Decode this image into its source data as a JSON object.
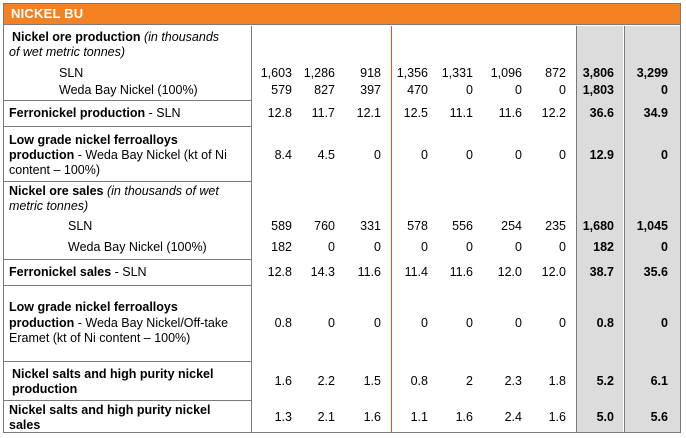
{
  "title": "NICKEL BU",
  "accent_color": "#f58220",
  "shade_color": "#dcdcdc",
  "divider_color": "#e0561a",
  "rows": [
    {
      "label_bold": "Nickel ore production",
      "label_italic": " (in thousands",
      "label_line2_italic": "of wet metric tonnes)"
    },
    {
      "label": "SLN",
      "values": [
        "1,603",
        "1,286",
        "918",
        "1,356",
        "1,331",
        "1,096",
        "872",
        "3,806",
        "3,299"
      ]
    },
    {
      "label": "Weda Bay Nickel (100%)",
      "values": [
        "579",
        "827",
        "397",
        "470",
        "0",
        "0",
        "0",
        "1,803",
        "0"
      ]
    },
    {
      "label_bold": "Ferronickel production",
      "label_normal": " - SLN",
      "values": [
        "12.8",
        "11.7",
        "12.1",
        "12.5",
        "11.1",
        "11.6",
        "12.2",
        "36.6",
        "34.9"
      ]
    },
    {
      "line1": "Low grade nickel ferroalloys",
      "line2_bold": "production",
      "line2_normal": " - Weda Bay Nickel (kt of Ni",
      "line3": "content – 100%)",
      "values": [
        "8.4",
        "4.5",
        "0",
        "0",
        "0",
        "0",
        "0",
        "12.9",
        "0"
      ]
    },
    {
      "label_bold": "Nickel ore sales",
      "label_italic": " (in thousands of wet",
      "label_line2_italic": "metric tonnes)"
    },
    {
      "label": "SLN",
      "values": [
        "589",
        "760",
        "331",
        "578",
        "556",
        "254",
        "235",
        "1,680",
        "1,045"
      ]
    },
    {
      "label": "Weda Bay Nickel (100%)",
      "values": [
        "182",
        "0",
        "0",
        "0",
        "0",
        "0",
        "0",
        "182",
        "0"
      ]
    },
    {
      "label_bold": "Ferronickel sales",
      "label_normal": " - SLN",
      "values": [
        "12.8",
        "14.3",
        "11.6",
        "11.4",
        "11.6",
        "12.0",
        "12.0",
        "38.7",
        "35.6"
      ]
    },
    {
      "line1": "Low grade nickel ferroalloys",
      "line2_bold": "production",
      "line2_normal": " - Weda Bay Nickel/Off-take",
      "line3": "Eramet (kt of Ni content – 100%)",
      "values": [
        "0.8",
        "0",
        "0",
        "0",
        "0",
        "0",
        "0",
        "0.8",
        "0"
      ]
    },
    {
      "line1": "Nickel salts and high purity nickel",
      "line2_bold": "production",
      "values": [
        "1.6",
        "2.2",
        "1.5",
        "0.8",
        "2",
        "2.3",
        "1.8",
        "5.2",
        "6.1"
      ]
    },
    {
      "line1": "Nickel salts and high purity nickel",
      "line2_bold": "sales",
      "values": [
        "1.3",
        "2.1",
        "1.6",
        "1.1",
        "1.6",
        "2.4",
        "1.6",
        "5.0",
        "5.6"
      ]
    }
  ]
}
